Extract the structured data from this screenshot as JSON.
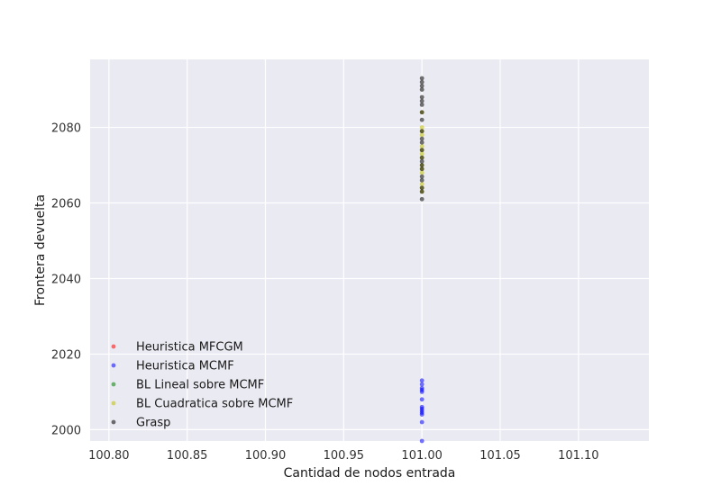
{
  "chart_data": {
    "type": "scatter",
    "title": "",
    "xlabel": "Cantidad de nodos entrada",
    "ylabel": "Frontera devuelta",
    "xlim": [
      100.788,
      101.145
    ],
    "ylim": [
      1997,
      2098
    ],
    "x_ticks": [
      "100.80",
      "100.85",
      "100.90",
      "100.95",
      "101.00",
      "101.05",
      "101.10"
    ],
    "y_ticks": [
      "2000",
      "2020",
      "2040",
      "2060",
      "2080"
    ],
    "grid": true,
    "background": "#eaeaf2",
    "legend_position": "lower-left",
    "series": [
      {
        "name": "Heuristica MFCGM",
        "color": "#ff0000",
        "points": []
      },
      {
        "name": "Heuristica MCMF",
        "color": "#0000ff",
        "points": [
          {
            "x": 101.0,
            "y": 2013
          },
          {
            "x": 101.0,
            "y": 2012
          },
          {
            "x": 101.0,
            "y": 2011
          },
          {
            "x": 101.0,
            "y": 2010.5
          },
          {
            "x": 101.0,
            "y": 2010
          },
          {
            "x": 101.0,
            "y": 2008
          },
          {
            "x": 101.0,
            "y": 2006
          },
          {
            "x": 101.0,
            "y": 2005.5
          },
          {
            "x": 101.0,
            "y": 2005
          },
          {
            "x": 101.0,
            "y": 2004.5
          },
          {
            "x": 101.0,
            "y": 2004
          },
          {
            "x": 101.0,
            "y": 2002
          },
          {
            "x": 101.0,
            "y": 1997
          }
        ]
      },
      {
        "name": "BL Lineal sobre MCMF",
        "color": "#008000",
        "points": []
      },
      {
        "name": "BL Cuadratica sobre MCMF",
        "color": "#bfbf00",
        "points": [
          {
            "x": 101.0,
            "y": 2084
          },
          {
            "x": 101.0,
            "y": 2080
          },
          {
            "x": 101.0,
            "y": 2079
          },
          {
            "x": 101.0,
            "y": 2078
          },
          {
            "x": 101.0,
            "y": 2075
          },
          {
            "x": 101.0,
            "y": 2074
          },
          {
            "x": 101.0,
            "y": 2073
          },
          {
            "x": 101.0,
            "y": 2072
          },
          {
            "x": 101.0,
            "y": 2070
          },
          {
            "x": 101.0,
            "y": 2069
          },
          {
            "x": 101.0,
            "y": 2068
          },
          {
            "x": 101.0,
            "y": 2065
          },
          {
            "x": 101.0,
            "y": 2064
          },
          {
            "x": 101.0,
            "y": 2063
          }
        ]
      },
      {
        "name": "Grasp",
        "color": "#000000",
        "points": [
          {
            "x": 101.0,
            "y": 2093
          },
          {
            "x": 101.0,
            "y": 2092
          },
          {
            "x": 101.0,
            "y": 2091
          },
          {
            "x": 101.0,
            "y": 2090
          },
          {
            "x": 101.0,
            "y": 2088
          },
          {
            "x": 101.0,
            "y": 2087
          },
          {
            "x": 101.0,
            "y": 2086
          },
          {
            "x": 101.0,
            "y": 2084
          },
          {
            "x": 101.0,
            "y": 2082
          },
          {
            "x": 101.0,
            "y": 2079
          },
          {
            "x": 101.0,
            "y": 2077
          },
          {
            "x": 101.0,
            "y": 2076
          },
          {
            "x": 101.0,
            "y": 2074
          },
          {
            "x": 101.0,
            "y": 2072
          },
          {
            "x": 101.0,
            "y": 2071
          },
          {
            "x": 101.0,
            "y": 2070
          },
          {
            "x": 101.0,
            "y": 2069
          },
          {
            "x": 101.0,
            "y": 2067
          },
          {
            "x": 101.0,
            "y": 2066
          },
          {
            "x": 101.0,
            "y": 2064
          },
          {
            "x": 101.0,
            "y": 2063
          },
          {
            "x": 101.0,
            "y": 2061
          }
        ]
      }
    ]
  }
}
